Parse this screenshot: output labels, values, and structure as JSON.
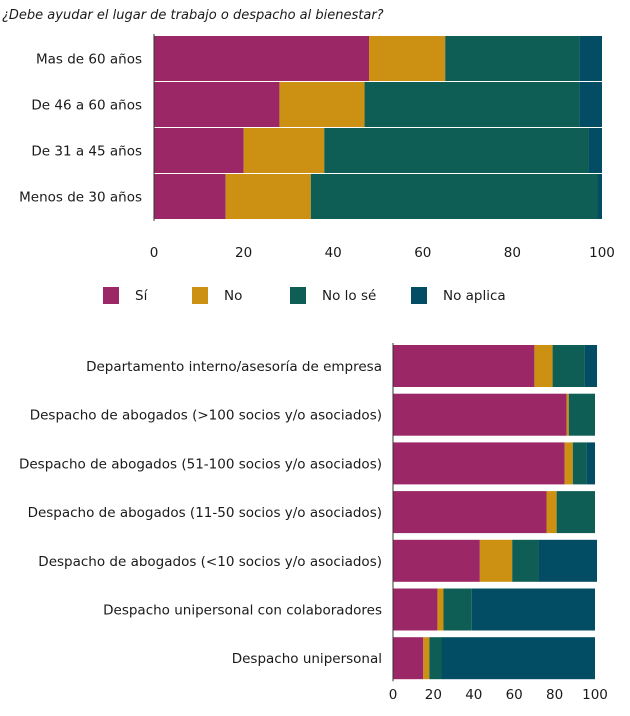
{
  "chart_data": [
    {
      "type": "bar",
      "orientation": "horizontal",
      "stacked": true,
      "title": "¿Debe ayudar el lugar de trabajo o despacho al bienestar?",
      "categories": [
        "Mas de 60 años",
        "De 46 a 60 años",
        "De 31 a 45 años",
        "Menos de 30 años"
      ],
      "series": [
        {
          "name": "Sí",
          "color": "#9b2766",
          "values": [
            48,
            28,
            20,
            16
          ]
        },
        {
          "name": "No",
          "color": "#cc9112",
          "values": [
            17,
            19,
            18,
            19
          ]
        },
        {
          "name": "No lo sé",
          "color": "#0f5e55",
          "values": [
            30,
            48,
            59,
            64
          ]
        },
        {
          "name": "No aplica",
          "color": "#024d63",
          "values": [
            5,
            5,
            3,
            1
          ]
        }
      ],
      "xlim": [
        0,
        100
      ],
      "xticks": [
        "0",
        "20",
        "40",
        "60",
        "80",
        "100"
      ],
      "legend_position": "bottom"
    },
    {
      "type": "bar",
      "orientation": "horizontal",
      "stacked": true,
      "categories": [
        "Departamento interno/asesoría de empresa",
        "Despacho de abogados (>100 socios y/o asociados)",
        "Despacho de abogados (51-100 socios y/o asociados)",
        "Despacho de abogados (11-50 socios y/o asociados)",
        "Despacho de abogados (<10 socios y/o asociados)",
        "Despacho unipersonal con colaboradores",
        "Despacho unipersonal"
      ],
      "series": [
        {
          "name": "Sí",
          "color": "#9b2766",
          "values": [
            70,
            86,
            85,
            76,
            43,
            22,
            15
          ]
        },
        {
          "name": "No",
          "color": "#cc9112",
          "values": [
            9,
            1,
            4,
            5,
            16,
            3,
            3
          ]
        },
        {
          "name": "No lo sé",
          "color": "#0f5e55",
          "values": [
            16,
            13,
            7,
            19,
            13,
            14,
            6
          ]
        },
        {
          "name": "No aplica",
          "color": "#024d63",
          "values": [
            6,
            0,
            4,
            0,
            29,
            61,
            76
          ]
        }
      ],
      "xlim": [
        0,
        100
      ],
      "xticks": [
        "0",
        "20",
        "40",
        "60",
        "80",
        "100"
      ]
    }
  ]
}
